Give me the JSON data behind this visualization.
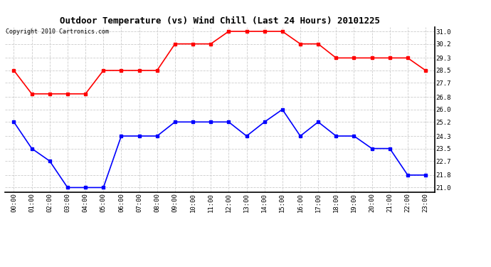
{
  "title": "Outdoor Temperature (vs) Wind Chill (Last 24 Hours) 20101225",
  "copyright": "Copyright 2010 Cartronics.com",
  "x_labels": [
    "00:00",
    "01:00",
    "02:00",
    "03:00",
    "04:00",
    "05:00",
    "06:00",
    "07:00",
    "08:00",
    "09:00",
    "10:00",
    "11:00",
    "12:00",
    "13:00",
    "14:00",
    "15:00",
    "16:00",
    "17:00",
    "18:00",
    "19:00",
    "20:00",
    "21:00",
    "22:00",
    "23:00"
  ],
  "red_data": [
    28.5,
    27.0,
    27.0,
    27.0,
    27.0,
    28.5,
    28.5,
    28.5,
    28.5,
    30.2,
    30.2,
    30.2,
    31.0,
    31.0,
    31.0,
    31.0,
    30.2,
    30.2,
    29.3,
    29.3,
    29.3,
    29.3,
    29.3,
    28.5
  ],
  "blue_data": [
    25.2,
    23.5,
    22.7,
    21.0,
    21.0,
    21.0,
    24.3,
    24.3,
    24.3,
    25.2,
    25.2,
    25.2,
    25.2,
    24.3,
    25.2,
    26.0,
    24.3,
    25.2,
    24.3,
    24.3,
    23.5,
    23.5,
    21.8,
    21.8
  ],
  "red_color": "#ff0000",
  "blue_color": "#0000ff",
  "bg_color": "#ffffff",
  "plot_bg_color": "#ffffff",
  "grid_color": "#cccccc",
  "y_ticks": [
    21.0,
    21.8,
    22.7,
    23.5,
    24.3,
    25.2,
    26.0,
    26.8,
    27.7,
    28.5,
    29.3,
    30.2,
    31.0
  ],
  "ylim": [
    20.7,
    31.3
  ],
  "title_fontsize": 9,
  "copyright_fontsize": 6,
  "tick_fontsize": 6.5,
  "marker": "s",
  "marker_size": 2.5,
  "line_width": 1.2
}
